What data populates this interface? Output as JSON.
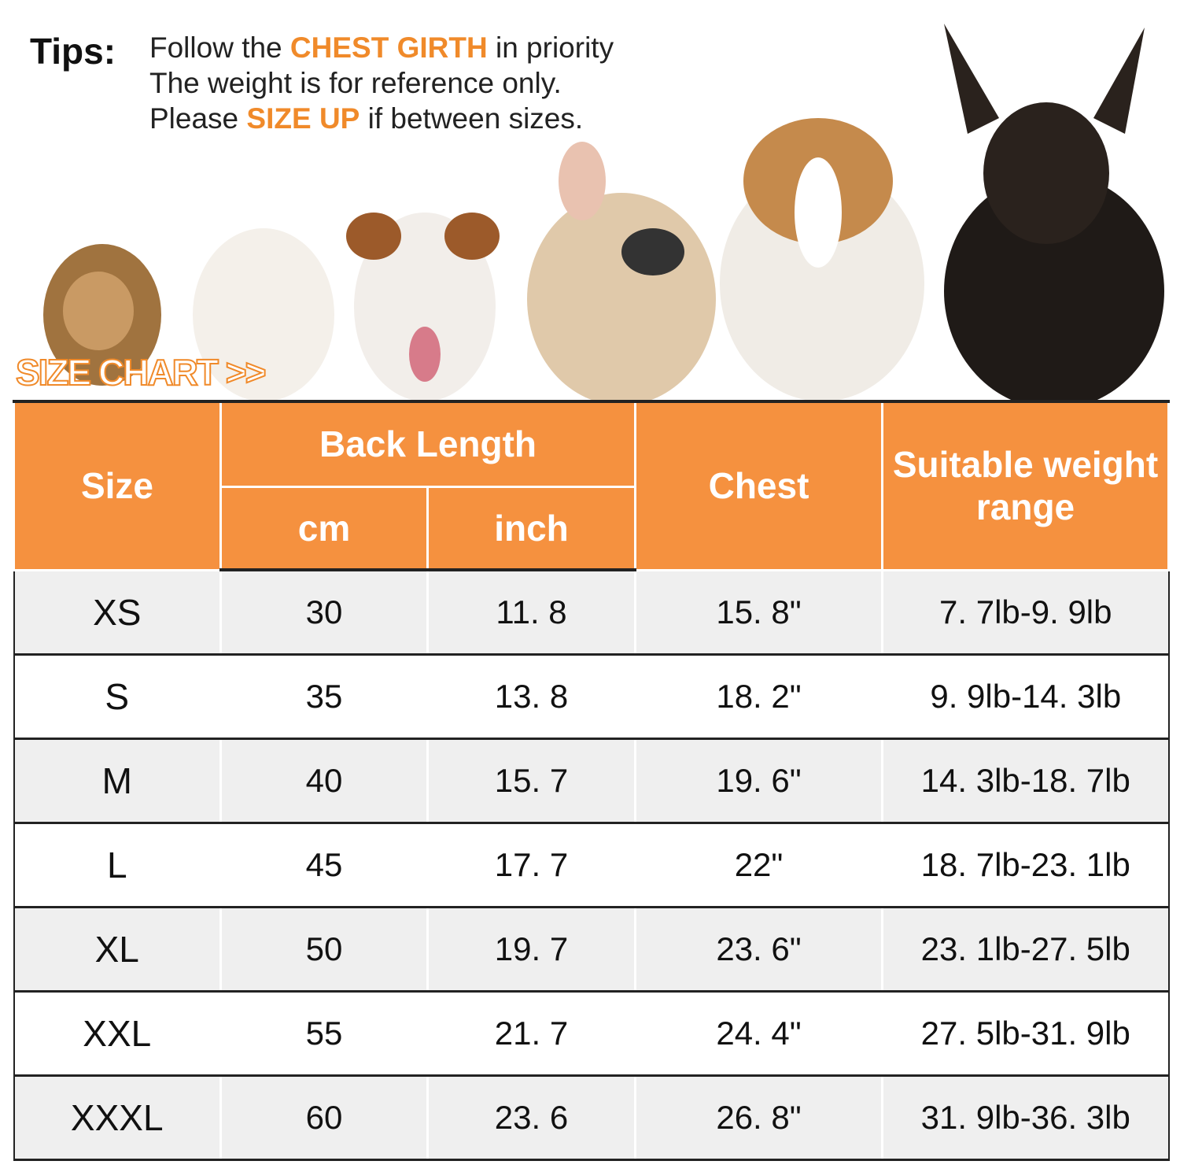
{
  "tips": {
    "label": "Tips:",
    "line1_pre": "Follow the ",
    "line1_highlight": "CHEST GIRTH",
    "line1_post": " in priority",
    "line2": "The weight is for reference only.",
    "line3_pre": "Please ",
    "line3_highlight": "SIZE UP",
    "line3_post": " if between sizes."
  },
  "banner": "SIZE CHART >>",
  "colors": {
    "header": "#f5913f",
    "highlight": "#f08a2a"
  },
  "table": {
    "headers": {
      "size": "Size",
      "back_length": "Back Length",
      "cm": "cm",
      "inch": "inch",
      "chest": "Chest",
      "weight": "Suitable weight range"
    },
    "rows": [
      {
        "size": "XS",
        "cm": "30",
        "inch": "11. 8",
        "chest": "15. 8\"",
        "weight": "7. 7lb-9. 9lb"
      },
      {
        "size": "S",
        "cm": "35",
        "inch": "13. 8",
        "chest": "18. 2\"",
        "weight": "9. 9lb-14. 3lb"
      },
      {
        "size": "M",
        "cm": "40",
        "inch": "15. 7",
        "chest": "19. 6\"",
        "weight": "14. 3lb-18. 7lb"
      },
      {
        "size": "L",
        "cm": "45",
        "inch": "17. 7",
        "chest": "22\"",
        "weight": "18. 7lb-23. 1lb"
      },
      {
        "size": "XL",
        "cm": "50",
        "inch": "19. 7",
        "chest": "23. 6\"",
        "weight": "23. 1lb-27. 5lb"
      },
      {
        "size": "XXL",
        "cm": "55",
        "inch": "21. 7",
        "chest": "24. 4\"",
        "weight": "27. 5lb-31. 9lb"
      },
      {
        "size": "XXXL",
        "cm": "60",
        "inch": "23. 6",
        "chest": "26. 8\"",
        "weight": "31. 9lb-36. 3lb"
      }
    ]
  }
}
